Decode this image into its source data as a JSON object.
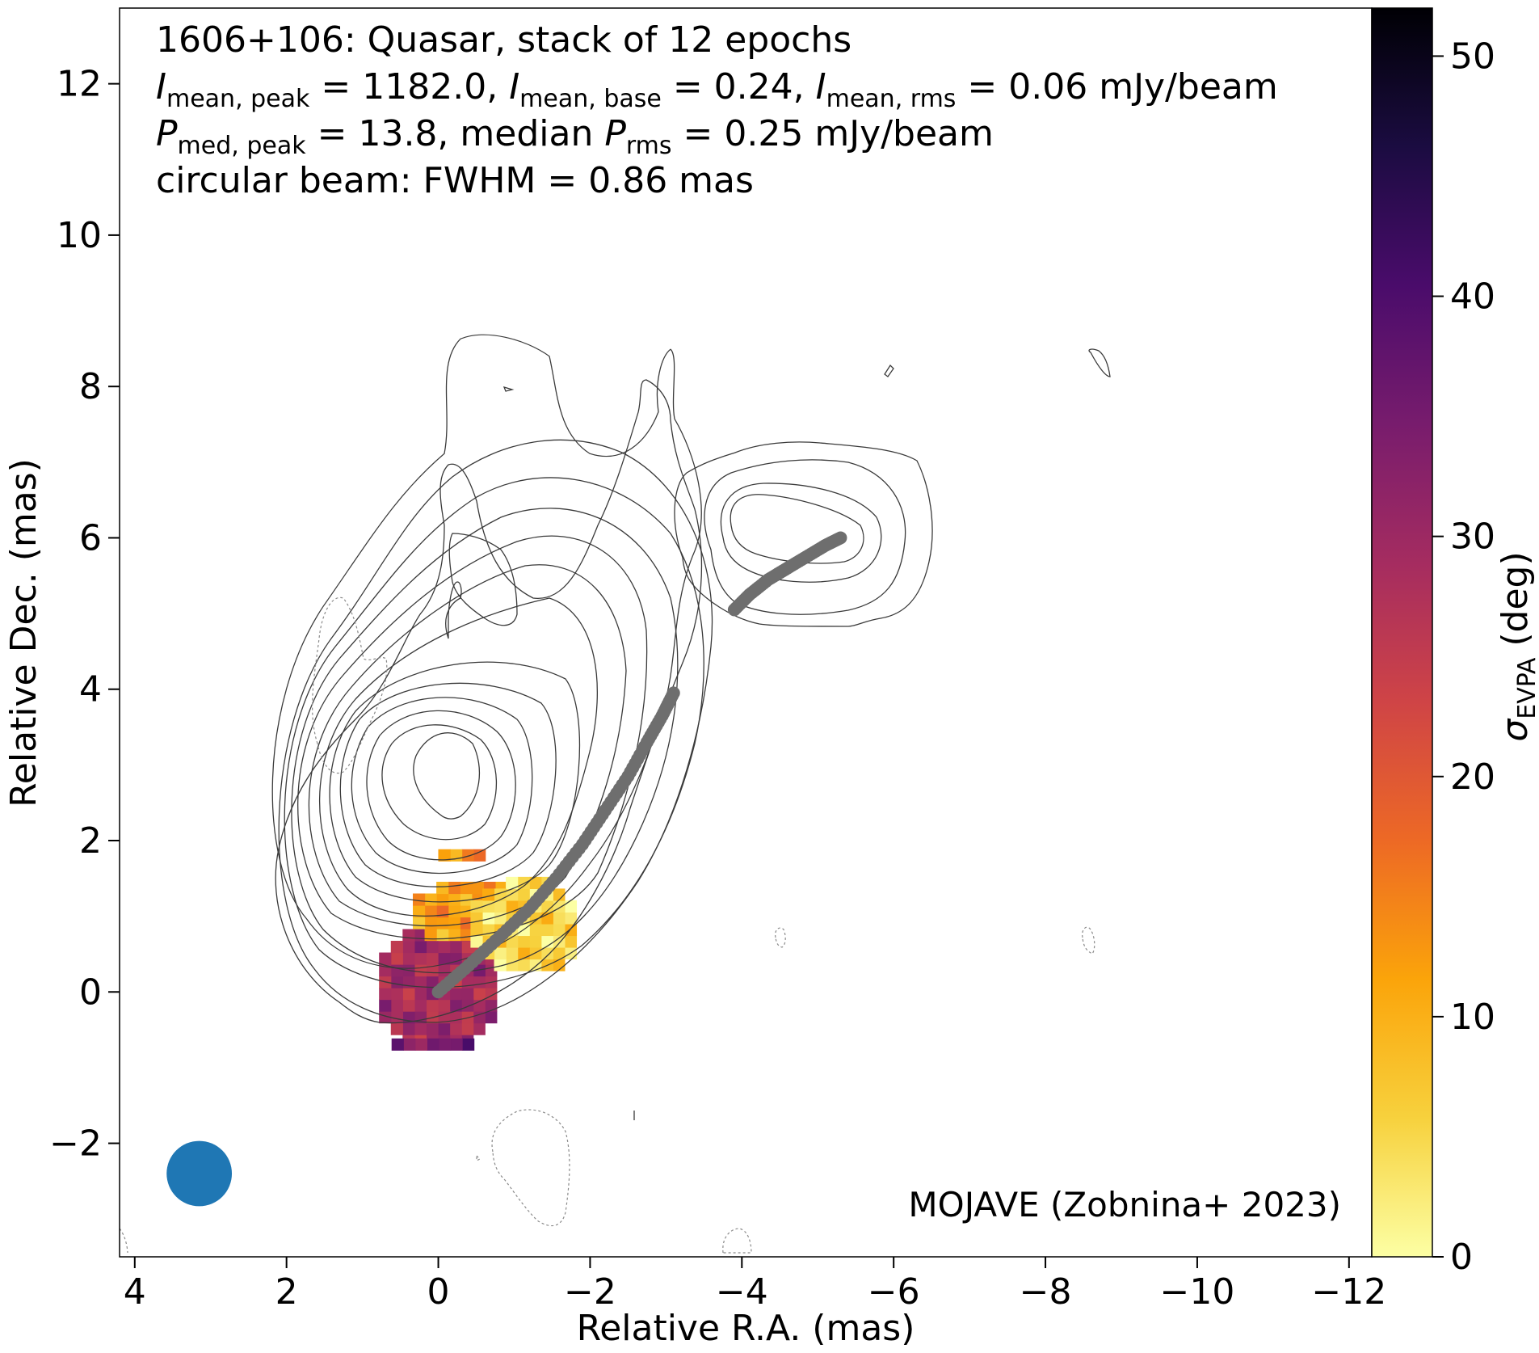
{
  "chart_data": {
    "type": "heatmap",
    "annotations": {
      "line1": "1606+106: Quasar, stack of 12 epochs",
      "line2": {
        "i1_sym": "I",
        "i1_sub": "mean, peak",
        "i1_val": " = 1182.0, ",
        "i2_sym": "I",
        "i2_sub": "mean, base",
        "i2_val": " = 0.24, ",
        "i3_sym": "I",
        "i3_sub": "mean, rms",
        "i3_val": " = 0.06 mJy/beam"
      },
      "line3": {
        "p1_sym": "P",
        "p1_sub": "med, peak",
        "p1_val": " = 13.8, median ",
        "p2_sym": "P",
        "p2_sub": "rms",
        "p2_val": " = 0.25 mJy/beam"
      },
      "line4": "circular beam: FWHM = 0.86 mas",
      "credit": "MOJAVE (Zobnina+ 2023)"
    },
    "xlabel": "Relative R.A. (mas)",
    "ylabel": "Relative Dec. (mas)",
    "xlim": [
      4.2,
      -12.3
    ],
    "ylim": [
      -3.5,
      13
    ],
    "x_ticks": [
      4,
      2,
      0,
      -2,
      -4,
      -6,
      -8,
      -10,
      -12
    ],
    "x_tick_labels": [
      "4",
      "2",
      "0",
      "−2",
      "−4",
      "−6",
      "−8",
      "−10",
      "−12"
    ],
    "y_ticks": [
      -2,
      0,
      2,
      4,
      6,
      8,
      10,
      12
    ],
    "y_tick_labels": [
      "−2",
      "0",
      "2",
      "4",
      "6",
      "8",
      "10",
      "12"
    ],
    "colorbar": {
      "label_sym": "σ",
      "label_sub": "EVPA",
      "label_unit": " (deg)",
      "range": [
        0,
        52
      ],
      "ticks": [
        0,
        10,
        20,
        30,
        40,
        50
      ],
      "tick_labels": [
        "0",
        "10",
        "20",
        "30",
        "40",
        "50"
      ],
      "colormap": "inferno_r",
      "stops": [
        "#fcffa4",
        "#f7d13d",
        "#fba40a",
        "#ed6925",
        "#cf4446",
        "#a52c60",
        "#781c6d",
        "#4a0c6b",
        "#1b0c41",
        "#000004"
      ]
    },
    "beam": {
      "x": 3.15,
      "y": -2.4,
      "fwhm": 0.86,
      "color": "#1f77b4"
    },
    "ridge_line": {
      "color": "#6e6e6e",
      "segment1": {
        "x": [
          0,
          -0.4,
          -0.8,
          -1.2,
          -1.55,
          -1.9,
          -2.2,
          -2.5,
          -2.75,
          -2.95,
          -3.1
        ],
        "y": [
          0,
          0.35,
          0.72,
          1.1,
          1.5,
          1.95,
          2.4,
          2.85,
          3.3,
          3.65,
          3.95
        ]
      },
      "segment2": {
        "x": [
          -3.9,
          -4.1,
          -4.35,
          -4.6,
          -4.85,
          -5.1,
          -5.3
        ],
        "y": [
          5.05,
          5.25,
          5.45,
          5.6,
          5.75,
          5.9,
          6.0
        ]
      }
    },
    "evpa_regions": [
      {
        "name": "core",
        "center": [
          0,
          0.05
        ],
        "radius": [
          0.85,
          0.85
        ],
        "sigma": 29
      },
      {
        "name": "core-edge",
        "center": [
          0,
          -0.7
        ],
        "radius": [
          0.55,
          0.15
        ],
        "sigma": 35
      },
      {
        "name": "outer-band",
        "center": [
          -0.55,
          1.05
        ],
        "radius": [
          0.9,
          0.45
        ],
        "sigma": 12
      },
      {
        "name": "jet-knot",
        "center": [
          -1.15,
          0.85
        ],
        "radius": [
          0.75,
          0.65
        ],
        "sigma": 5
      },
      {
        "name": "upper-tip",
        "center": [
          -0.35,
          1.8
        ],
        "radius": [
          0.35,
          0.15
        ],
        "sigma": 14
      }
    ]
  }
}
